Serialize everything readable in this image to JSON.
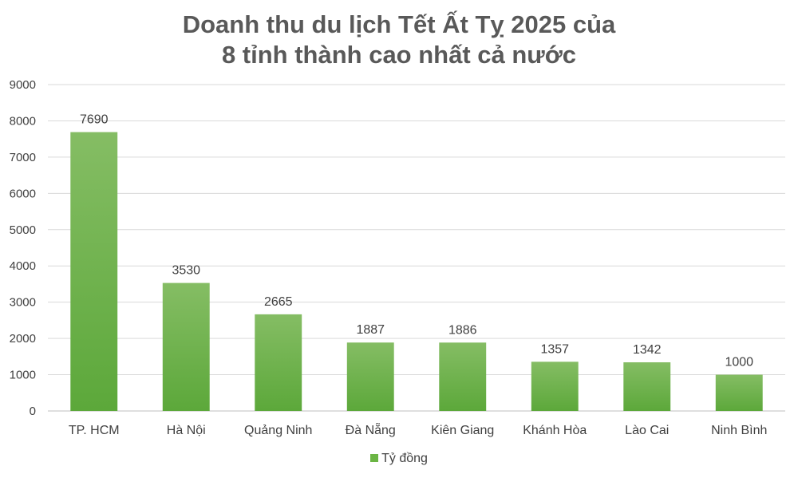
{
  "chart_data": {
    "type": "bar",
    "title": [
      "Doanh thu du lịch Tết Ất Tỵ 2025 của",
      "8 tỉnh thành cao nhất cả nước"
    ],
    "categories": [
      "TP. HCM",
      "Hà Nội",
      "Quảng Ninh",
      "Đà Nẵng",
      "Kiên Giang",
      "Khánh Hòa",
      "Lào Cai",
      "Ninh Bình"
    ],
    "series": [
      {
        "name": "Tỷ đồng",
        "values": [
          7690,
          3530,
          2665,
          1887,
          1886,
          1357,
          1342,
          1000
        ],
        "color": "#6bb544"
      }
    ],
    "yticks": [
      0,
      1000,
      2000,
      3000,
      4000,
      5000,
      6000,
      7000,
      8000,
      9000
    ],
    "ylim": [
      0,
      9000
    ],
    "grid": true,
    "legend_position": "bottom",
    "data_labels": true
  }
}
